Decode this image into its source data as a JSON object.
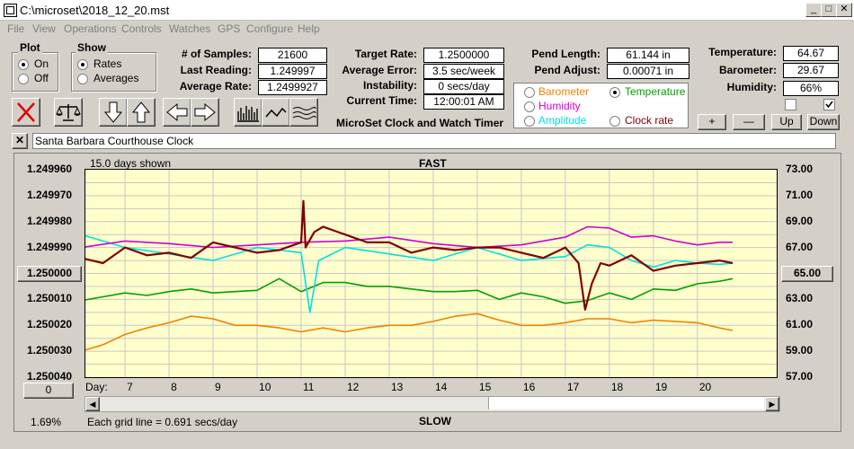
{
  "window": {
    "title": "C:\\microset\\2018_12_20.mst"
  },
  "menu": [
    "File",
    "View",
    "Operations",
    "Controls",
    "Watches",
    "GPS",
    "Configure",
    "Help"
  ],
  "plot_group": {
    "title": "Plot",
    "on": "On",
    "off": "Off",
    "selected": "On"
  },
  "show_group": {
    "title": "Show",
    "rates": "Rates",
    "averages": "Averages",
    "selected": "Rates"
  },
  "stats": {
    "samples_label": "# of Samples:",
    "samples": "21600",
    "last_label": "Last Reading:",
    "last": "1.249997",
    "avg_label": "Average Rate:",
    "avg": "1.2499927",
    "target_label": "Target Rate:",
    "target": "1.2500000",
    "avgerr_label": "Average Error:",
    "avgerr": "3.5 sec/week",
    "instab_label": "Instability:",
    "instab": "0 secs/day",
    "time_label": "Current Time:",
    "time": "12:00:01 AM",
    "pendlen_label": "Pend Length:",
    "pendlen": "61.144 in",
    "pendadj_label": "Pend Adjust:",
    "pendadj": "0.00071 in",
    "temp_label": "Temperature:",
    "temp": "64.67",
    "baro_label": "Barometer:",
    "baro": "29.67",
    "hum_label": "Humidity:",
    "hum": "66%"
  },
  "app_name": "MicroSet Clock and Watch Timer",
  "aux": {
    "barometer": "Barometer",
    "temperature": "Temperature",
    "humidity": "Humidity",
    "amplitude": "Amplitude",
    "clockrate": "Clock rate",
    "selected": "Temperature",
    "colors": {
      "barometer": "#f08000",
      "temperature": "#00a000",
      "humidity": "#d000d0",
      "amplitude": "#00e0e0",
      "clockrate": "#800000"
    }
  },
  "aux_buttons": {
    "plus": "+",
    "minus": "—",
    "up": "Up",
    "down": "Down"
  },
  "clock_name": "Santa Barbara Courthouse Clock",
  "chart_data": {
    "type": "line",
    "top_label": "FAST",
    "bottom_label": "SLOW",
    "days_shown": "15.0 days shown",
    "grid_note": "Each grid line = 0.691 secs/day",
    "zoom": "1.69%",
    "left_axis_ticks": [
      "1.249960",
      "1.249970",
      "1.249980",
      "1.249990",
      "1.250000",
      "1.250010",
      "1.250020",
      "1.250030",
      "1.250040"
    ],
    "right_axis_ticks": [
      "73.00",
      "71.00",
      "69.00",
      "67.00",
      "65.00",
      "63.00",
      "61.00",
      "59.00",
      "57.00"
    ],
    "center_left": "1.250000",
    "center_right": "65.00",
    "x_label": "Day:",
    "x_ticks": [
      "7",
      "8",
      "9",
      "10",
      "11",
      "12",
      "13",
      "14",
      "15",
      "16",
      "17",
      "18",
      "19",
      "20"
    ],
    "left_button": "0",
    "ylim_left": [
      1.24996,
      1.25004
    ],
    "ylim_right": [
      57,
      73
    ],
    "series": [
      {
        "name": "Clock rate",
        "color": "#800000",
        "axis": "left",
        "x": [
          6.0,
          6.5,
          7.0,
          7.5,
          8.0,
          8.5,
          9.0,
          9.5,
          10.0,
          10.5,
          11.0,
          11.05,
          11.1,
          11.3,
          11.5,
          12.0,
          12.5,
          13.0,
          13.5,
          14.0,
          14.5,
          15.0,
          15.5,
          16.0,
          16.5,
          17.0,
          17.3,
          17.45,
          17.6,
          17.8,
          18.0,
          18.5,
          19.0,
          19.5,
          20.0,
          20.5,
          20.8
        ],
        "y": [
          1.249994,
          1.249996,
          1.24999,
          1.249993,
          1.249992,
          1.249994,
          1.249988,
          1.24999,
          1.249992,
          1.249991,
          1.249988,
          1.249972,
          1.24999,
          1.249984,
          1.249982,
          1.249985,
          1.249988,
          1.249988,
          1.249992,
          1.24999,
          1.249991,
          1.24999,
          1.24999,
          1.249992,
          1.249994,
          1.24999,
          1.249996,
          1.250014,
          1.250004,
          1.249996,
          1.249997,
          1.249993,
          1.249999,
          1.249997,
          1.249996,
          1.249995,
          1.249996
        ]
      },
      {
        "name": "Humidity",
        "color": "#d000d0",
        "axis": "right",
        "x": [
          6.0,
          7.0,
          8.0,
          9.0,
          10.0,
          11.0,
          12.0,
          13.0,
          14.0,
          15.0,
          16.0,
          17.0,
          17.5,
          18.0,
          18.5,
          19.0,
          19.5,
          20.0,
          20.5,
          20.8
        ],
        "y": [
          67.0,
          67.5,
          67.3,
          67.0,
          67.2,
          67.4,
          67.5,
          67.8,
          67.3,
          67.0,
          67.2,
          67.8,
          68.6,
          68.5,
          67.8,
          67.9,
          67.5,
          67.2,
          67.4,
          67.4
        ]
      },
      {
        "name": "Amplitude",
        "color": "#00e0e0",
        "axis": "right",
        "x": [
          6.0,
          6.5,
          7.0,
          8.0,
          9.0,
          10.0,
          11.0,
          11.2,
          11.4,
          12.0,
          13.0,
          14.0,
          15.0,
          16.0,
          17.0,
          17.5,
          18.0,
          18.5,
          19.0,
          19.5,
          20.0,
          20.5,
          20.8
        ],
        "y": [
          68.0,
          67.5,
          67.0,
          66.5,
          66.0,
          67.0,
          66.6,
          62.0,
          66.0,
          67.0,
          66.5,
          66.0,
          67.0,
          66.0,
          66.3,
          67.2,
          67.0,
          66.0,
          65.5,
          66.0,
          65.8,
          65.7,
          65.8
        ]
      },
      {
        "name": "Temperature",
        "color": "#00a000",
        "axis": "right",
        "x": [
          6.0,
          6.5,
          7.0,
          7.5,
          8.0,
          8.5,
          9.0,
          9.5,
          10.0,
          10.5,
          11.0,
          11.5,
          12.0,
          12.5,
          13.0,
          13.5,
          14.0,
          14.5,
          15.0,
          15.5,
          16.0,
          16.5,
          17.0,
          17.5,
          18.0,
          18.5,
          19.0,
          19.5,
          20.0,
          20.5,
          20.8
        ],
        "y": [
          62.9,
          63.2,
          63.5,
          63.3,
          63.6,
          63.8,
          63.5,
          63.6,
          63.7,
          64.6,
          63.6,
          64.3,
          64.3,
          64.0,
          64.0,
          63.8,
          63.6,
          63.6,
          63.7,
          63.0,
          63.5,
          63.2,
          62.7,
          62.9,
          63.5,
          63.0,
          63.8,
          63.7,
          64.2,
          64.4,
          64.6
        ]
      },
      {
        "name": "Barometer",
        "color": "#f08000",
        "axis": "right",
        "x": [
          6.0,
          6.5,
          7.0,
          7.5,
          8.0,
          8.5,
          9.0,
          9.5,
          10.0,
          10.5,
          11.0,
          11.5,
          12.0,
          12.5,
          13.0,
          13.5,
          14.0,
          14.5,
          15.0,
          15.5,
          16.0,
          16.5,
          17.0,
          17.5,
          18.0,
          18.5,
          19.0,
          19.5,
          20.0,
          20.5,
          20.8
        ],
        "y": [
          59.0,
          59.5,
          60.3,
          60.8,
          61.2,
          61.7,
          61.5,
          61.0,
          61.0,
          60.8,
          60.5,
          60.8,
          60.5,
          60.8,
          61.0,
          61.0,
          61.3,
          61.7,
          61.9,
          61.4,
          61.0,
          61.0,
          61.2,
          61.5,
          61.5,
          61.2,
          61.4,
          61.3,
          61.2,
          60.8,
          60.6
        ]
      }
    ]
  }
}
